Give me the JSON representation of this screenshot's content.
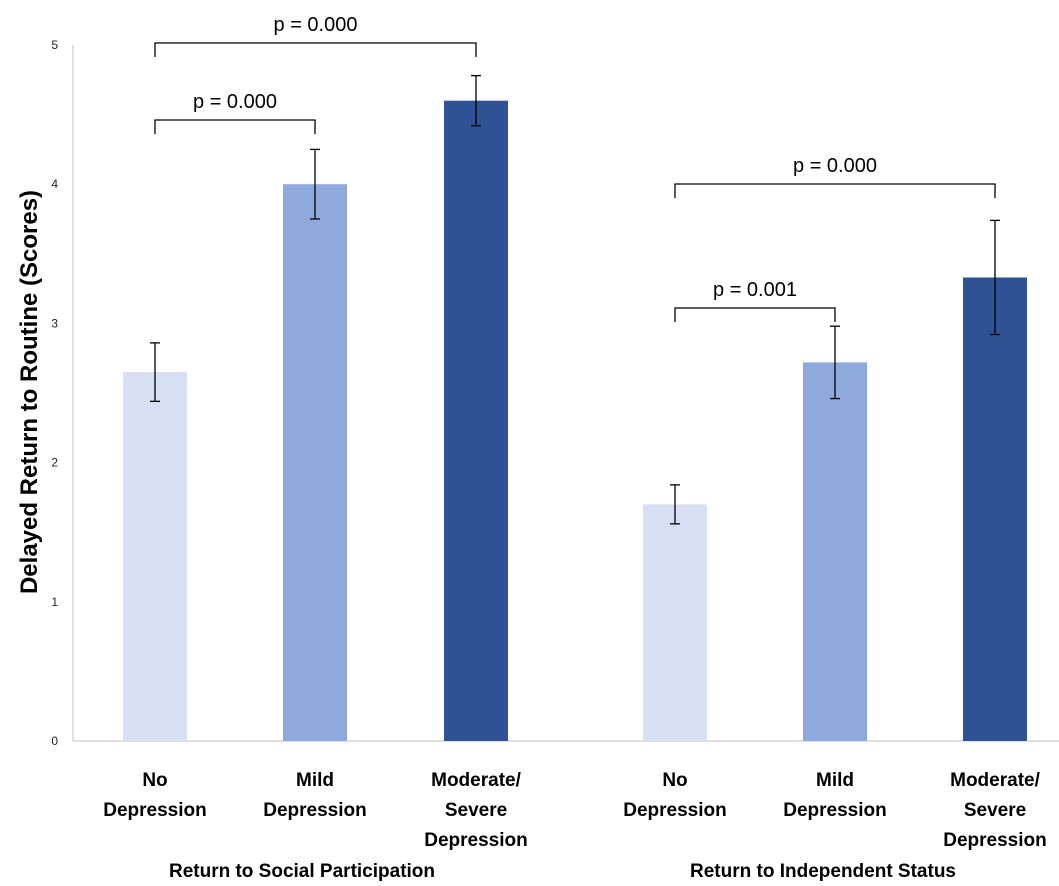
{
  "chart_data": {
    "type": "bar",
    "title": "",
    "ylabel": "Delayed Return to Routine (Scores)",
    "ylim": [
      0,
      5
    ],
    "yticks": [
      "0",
      "1",
      "2",
      "3",
      "4",
      "5"
    ],
    "grid": false,
    "colors": [
      "#d6e0f2",
      "#8ea9dc",
      "#2e5293"
    ],
    "groups": [
      {
        "name": "Return to Social Participation",
        "bars": [
          {
            "label": [
              "No",
              "Depression"
            ],
            "value": 2.65,
            "err_low": 2.44,
            "err_high": 2.86
          },
          {
            "label": [
              "Mild",
              "Depression"
            ],
            "value": 4.0,
            "err_low": 3.75,
            "err_high": 4.25
          },
          {
            "label": [
              "Moderate/",
              "Severe",
              "Depression"
            ],
            "value": 4.6,
            "err_low": 4.42,
            "err_high": 4.78
          }
        ],
        "comparisons": [
          {
            "from": 0,
            "to": 1,
            "text": "p = 0.000"
          },
          {
            "from": 0,
            "to": 2,
            "text": "p = 0.000"
          }
        ]
      },
      {
        "name": "Return to Independent Status",
        "bars": [
          {
            "label": [
              "No",
              "Depression"
            ],
            "value": 1.7,
            "err_low": 1.56,
            "err_high": 1.84
          },
          {
            "label": [
              "Mild",
              "Depression"
            ],
            "value": 2.72,
            "err_low": 2.46,
            "err_high": 2.98
          },
          {
            "label": [
              "Moderate/",
              "Severe",
              "Depression"
            ],
            "value": 3.33,
            "err_low": 2.92,
            "err_high": 3.74
          }
        ],
        "comparisons": [
          {
            "from": 0,
            "to": 1,
            "text": "p = 0.001"
          },
          {
            "from": 0,
            "to": 2,
            "text": "p = 0.000"
          }
        ]
      }
    ]
  }
}
